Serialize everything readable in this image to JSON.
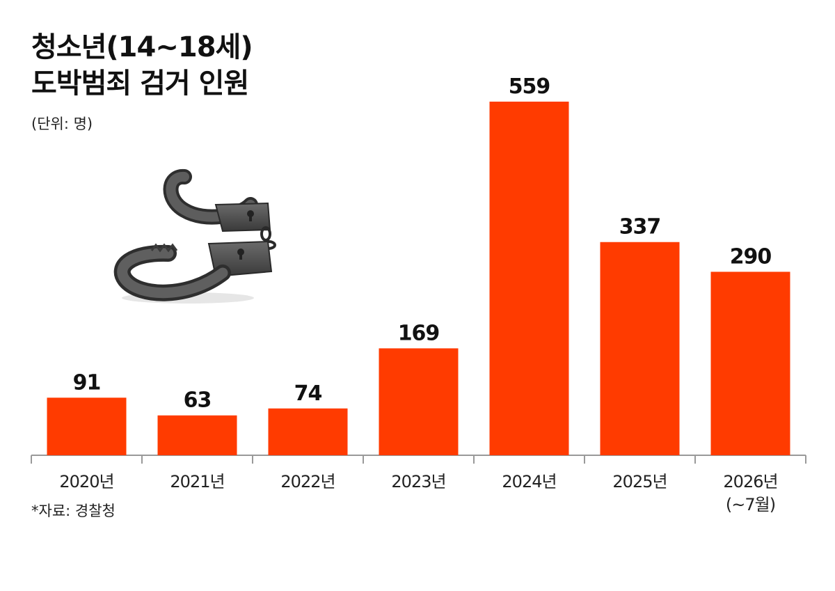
{
  "title_line1": "청소년(14~18세)",
  "title_line2": "도박범죄 검거 인원",
  "unit_label": "(단위: 명)",
  "source_label": "*자료: 경찰청",
  "colors": {
    "bar": "#ff3b00",
    "axis": "#999999",
    "text": "#111111"
  },
  "illustration": {
    "icon": "handcuffs-icon"
  },
  "chart_data": {
    "type": "bar",
    "categories": [
      "2020년",
      "2021년",
      "2022년",
      "2023년",
      "2024년",
      "2025년",
      "2026년\n(~7월)"
    ],
    "values": [
      91,
      63,
      74,
      169,
      559,
      337,
      290
    ],
    "title": "청소년(14~18세) 도박범죄 검거 인원",
    "xlabel": "",
    "ylabel": "",
    "unit": "명",
    "ylim": [
      0,
      600
    ],
    "grid": false,
    "legend": "none",
    "data_labels": true
  }
}
